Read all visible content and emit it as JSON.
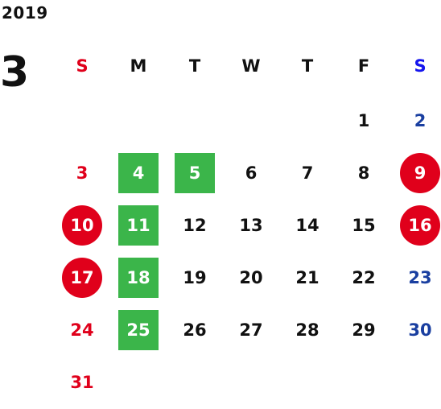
{
  "year": "2019",
  "month": "3",
  "colors": {
    "sunday": "#e0001b",
    "saturday": "#1a3fa0",
    "saturday_header": "#1515ee",
    "weekday": "#111111",
    "green_highlight": "#3bb54a",
    "red_highlight": "#e0001b"
  },
  "weekdays": [
    "S",
    "M",
    "T",
    "W",
    "T",
    "F",
    "S"
  ],
  "weeks": [
    [
      null,
      null,
      null,
      null,
      null,
      {
        "d": "1"
      },
      {
        "d": "2"
      }
    ],
    [
      {
        "d": "3"
      },
      {
        "d": "4",
        "mark": "green"
      },
      {
        "d": "5",
        "mark": "green"
      },
      {
        "d": "6"
      },
      {
        "d": "7"
      },
      {
        "d": "8"
      },
      {
        "d": "9",
        "mark": "red"
      }
    ],
    [
      {
        "d": "10",
        "mark": "red"
      },
      {
        "d": "11",
        "mark": "green"
      },
      {
        "d": "12"
      },
      {
        "d": "13"
      },
      {
        "d": "14"
      },
      {
        "d": "15"
      },
      {
        "d": "16",
        "mark": "red"
      }
    ],
    [
      {
        "d": "17",
        "mark": "red"
      },
      {
        "d": "18",
        "mark": "green"
      },
      {
        "d": "19"
      },
      {
        "d": "20"
      },
      {
        "d": "21"
      },
      {
        "d": "22"
      },
      {
        "d": "23"
      }
    ],
    [
      {
        "d": "24"
      },
      {
        "d": "25",
        "mark": "green"
      },
      {
        "d": "26"
      },
      {
        "d": "27"
      },
      {
        "d": "28"
      },
      {
        "d": "29"
      },
      {
        "d": "30"
      }
    ],
    [
      {
        "d": "31"
      },
      null,
      null,
      null,
      null,
      null,
      null
    ]
  ]
}
